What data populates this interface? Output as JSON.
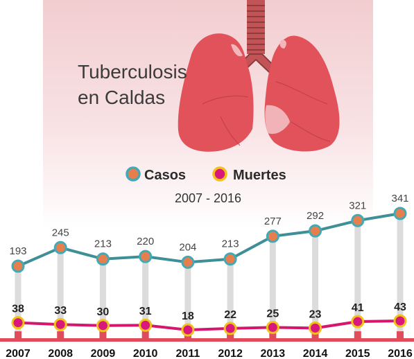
{
  "title_lines": [
    "Tuberculosis",
    "en Caldas"
  ],
  "subtitle": "2007 - 2016",
  "colors": {
    "casos_line": "#3f8f99",
    "casos_ring": "#43a9b4",
    "casos_fill": "#e67e4d",
    "muertes_line": "#d5166f",
    "muertes_ring": "#f0c21b",
    "muertes_fill": "#d8187a",
    "stem": "#dcdcdc",
    "bottom_bar": "#e04c5a",
    "lungs": "#e2525a",
    "trachea": "#b84a4c"
  },
  "icons": [
    "lungs-illustration"
  ],
  "chart_data": {
    "type": "line",
    "title": "Tuberculosis en Caldas",
    "subtitle": "2007 - 2016",
    "x": [
      "2007",
      "2008",
      "2009",
      "2010",
      "2011",
      "2012",
      "2013",
      "2014",
      "2015",
      "2016"
    ],
    "series": [
      {
        "name": "Casos",
        "values": [
          193,
          245,
          213,
          220,
          204,
          213,
          277,
          292,
          321,
          341
        ]
      },
      {
        "name": "Muertes",
        "values": [
          38,
          33,
          30,
          31,
          18,
          22,
          25,
          23,
          41,
          43
        ]
      }
    ],
    "legend": "top-center",
    "grid": false
  }
}
